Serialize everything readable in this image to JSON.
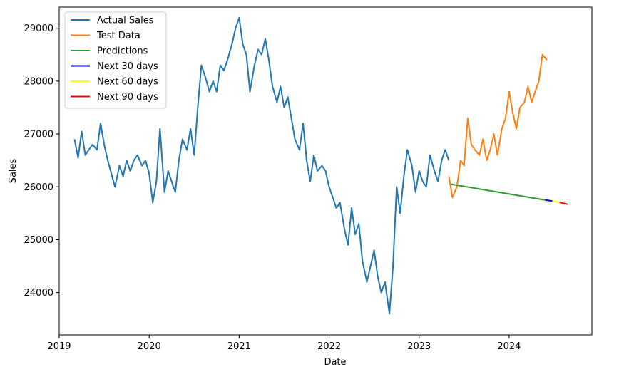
{
  "chart_data": {
    "type": "line",
    "title": "",
    "xlabel": "Date",
    "ylabel": "Sales",
    "x_range": [
      2019.0,
      2024.92
    ],
    "ylim": [
      23200,
      29400
    ],
    "x_ticks": [
      "2019",
      "2020",
      "2021",
      "2022",
      "2023",
      "2024"
    ],
    "y_ticks": [
      "24000",
      "25000",
      "26000",
      "27000",
      "28000",
      "29000"
    ],
    "grid": false,
    "legend_position": "top-left",
    "series": [
      {
        "name": "Actual Sales",
        "color": "#1f77b4",
        "x": [
          2019.17,
          2019.21,
          2019.25,
          2019.29,
          2019.33,
          2019.37,
          2019.42,
          2019.46,
          2019.5,
          2019.54,
          2019.58,
          2019.62,
          2019.67,
          2019.71,
          2019.75,
          2019.79,
          2019.83,
          2019.87,
          2019.92,
          2019.96,
          2020.0,
          2020.04,
          2020.08,
          2020.12,
          2020.17,
          2020.21,
          2020.25,
          2020.29,
          2020.33,
          2020.37,
          2020.42,
          2020.46,
          2020.5,
          2020.54,
          2020.58,
          2020.62,
          2020.67,
          2020.71,
          2020.75,
          2020.79,
          2020.83,
          2020.87,
          2020.92,
          2020.96,
          2021.0,
          2021.04,
          2021.08,
          2021.12,
          2021.17,
          2021.21,
          2021.25,
          2021.29,
          2021.33,
          2021.37,
          2021.42,
          2021.46,
          2021.5,
          2021.54,
          2021.58,
          2021.62,
          2021.67,
          2021.71,
          2021.75,
          2021.79,
          2021.83,
          2021.87,
          2021.92,
          2021.96,
          2022.0,
          2022.04,
          2022.08,
          2022.12,
          2022.17,
          2022.21,
          2022.25,
          2022.29,
          2022.33,
          2022.37,
          2022.42,
          2022.46,
          2022.5,
          2022.54,
          2022.58,
          2022.62,
          2022.67,
          2022.71,
          2022.75,
          2022.79,
          2022.83,
          2022.87,
          2022.92,
          2022.96,
          2023.0,
          2023.04,
          2023.08,
          2023.12,
          2023.17,
          2023.21,
          2023.25,
          2023.29,
          2023.33
        ],
        "y": [
          26900,
          26550,
          27050,
          26600,
          26700,
          26800,
          26700,
          27200,
          26800,
          26500,
          26250,
          26000,
          26400,
          26200,
          26500,
          26300,
          26500,
          26600,
          26400,
          26500,
          26250,
          25700,
          26100,
          27100,
          25900,
          26300,
          26100,
          25900,
          26500,
          26900,
          26700,
          27100,
          26600,
          27500,
          28300,
          28100,
          27800,
          28000,
          27800,
          28300,
          28200,
          28400,
          28700,
          29000,
          29200,
          28700,
          28500,
          27800,
          28300,
          28600,
          28500,
          28800,
          28400,
          27900,
          27600,
          27900,
          27500,
          27700,
          27300,
          26900,
          26700,
          27200,
          26500,
          26100,
          26600,
          26300,
          26400,
          26300,
          26000,
          25800,
          25600,
          25700,
          25200,
          24900,
          25600,
          25100,
          25300,
          24600,
          24200,
          24500,
          24800,
          24300,
          24000,
          24200,
          23600,
          24500,
          26000,
          25500,
          26200,
          26700,
          26400,
          25900,
          26300,
          26100,
          26000,
          26600,
          26300,
          26100,
          26500,
          26700,
          26500
        ]
      },
      {
        "name": "Test Data",
        "color": "#ff7f0e",
        "x": [
          2023.33,
          2023.37,
          2023.42,
          2023.46,
          2023.5,
          2023.54,
          2023.58,
          2023.62,
          2023.67,
          2023.71,
          2023.75,
          2023.79,
          2023.83,
          2023.87,
          2023.92,
          2023.96,
          2024.0,
          2024.04,
          2024.08,
          2024.12,
          2024.17,
          2024.21,
          2024.25,
          2024.29,
          2024.33,
          2024.37,
          2024.42
        ],
        "y": [
          26200,
          25800,
          26000,
          26500,
          26400,
          27300,
          26800,
          26700,
          26600,
          26900,
          26500,
          26700,
          27000,
          26600,
          27100,
          27300,
          27800,
          27400,
          27100,
          27500,
          27600,
          27900,
          27600,
          27800,
          28000,
          28500,
          28400
        ]
      },
      {
        "name": "Predictions",
        "color": "#2ca02c",
        "x": [
          2023.35,
          2024.4
        ],
        "y": [
          26050,
          25750
        ]
      },
      {
        "name": "Next 30 days",
        "color": "#0000ff",
        "x": [
          2024.4,
          2024.48
        ],
        "y": [
          25750,
          25730
        ]
      },
      {
        "name": "Next 60 days",
        "color": "#ffff00",
        "x": [
          2024.48,
          2024.56
        ],
        "y": [
          25730,
          25705
        ]
      },
      {
        "name": "Next 90 days",
        "color": "#ff0000",
        "x": [
          2024.56,
          2024.65
        ],
        "y": [
          25705,
          25670
        ]
      }
    ]
  }
}
